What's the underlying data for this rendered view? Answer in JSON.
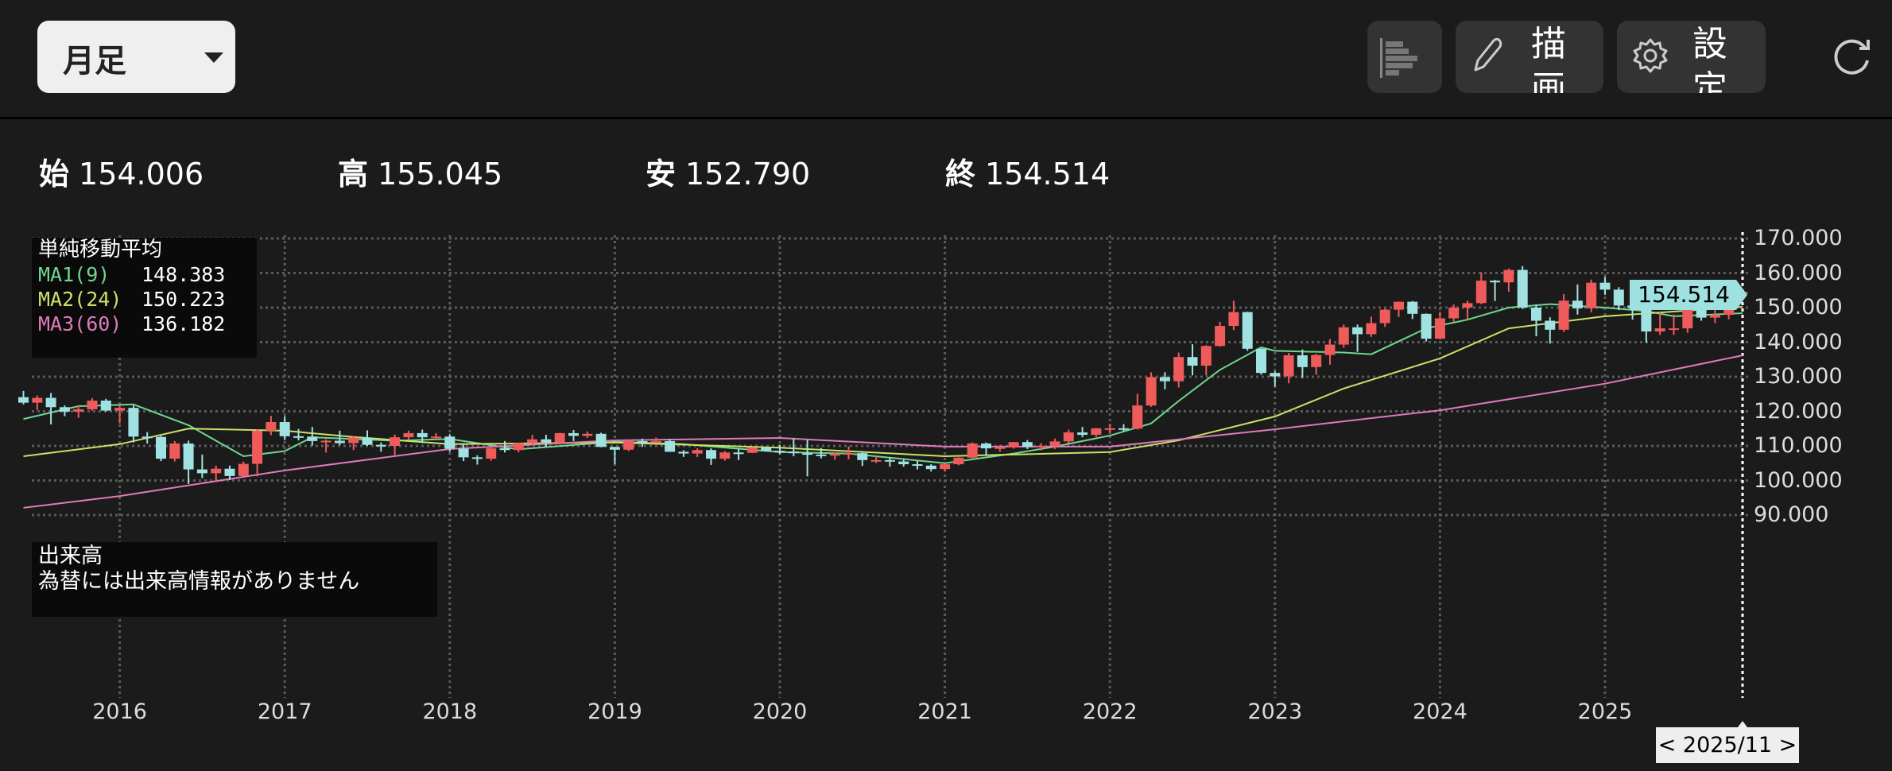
{
  "toolbar": {
    "period_label": "月足",
    "draw_label": "描画",
    "settings_label": "設定",
    "icons": [
      "indicator-list-icon",
      "pencil-icon",
      "gear-icon",
      "refresh-icon",
      "chevron-down-icon"
    ]
  },
  "ohlc": {
    "open_label": "始",
    "open": "154.006",
    "high_label": "高",
    "high": "155.045",
    "low_label": "安",
    "low": "152.790",
    "close_label": "終",
    "close": "154.514"
  },
  "legend": {
    "title": "単純移動平均",
    "items": [
      {
        "name": "MA1(9)",
        "value": "148.383",
        "color": "#6fd68f"
      },
      {
        "name": "MA2(24)",
        "value": "150.223",
        "color": "#c9e168"
      },
      {
        "name": "MA3(60)",
        "value": "136.182",
        "color": "#e07ab8"
      }
    ]
  },
  "volume": {
    "title": "出来高",
    "message": "為替には出来高情報がありません"
  },
  "current_price_tag": "154.514",
  "selected_date": "< 2025/11 >",
  "chart_data": {
    "type": "candlestick",
    "interval": "monthly",
    "start": "2015/06",
    "end": "2025/11",
    "up_color": "#ef5b5b",
    "down_color": "#a0e1e1",
    "ylim": [
      90,
      170
    ],
    "y_ticks": [
      "170.000",
      "160.000",
      "150.000",
      "140.000",
      "130.000",
      "120.000",
      "110.000",
      "100.000",
      "90.000"
    ],
    "x_ticks": [
      "2016",
      "2017",
      "2018",
      "2019",
      "2020",
      "2021",
      "2022",
      "2023",
      "2024",
      "2025"
    ],
    "grid": true,
    "ohlc": [
      [
        124.1,
        125.9,
        122.0,
        122.5
      ],
      [
        122.5,
        124.6,
        120.4,
        123.9
      ],
      [
        123.9,
        125.3,
        116.2,
        121.2
      ],
      [
        121.2,
        121.7,
        118.6,
        119.9
      ],
      [
        119.9,
        121.5,
        118.1,
        120.6
      ],
      [
        120.6,
        123.8,
        120.2,
        123.1
      ],
      [
        123.1,
        123.6,
        119.9,
        120.2
      ],
      [
        120.2,
        121.7,
        116.5,
        121.0
      ],
      [
        121.0,
        121.7,
        111.0,
        112.7
      ],
      [
        112.7,
        114.0,
        110.7,
        112.6
      ],
      [
        112.6,
        112.9,
        105.6,
        106.3
      ],
      [
        106.3,
        111.4,
        105.5,
        110.7
      ],
      [
        110.7,
        111.5,
        99.0,
        103.2
      ],
      [
        103.2,
        107.5,
        100.7,
        102.1
      ],
      [
        102.1,
        104.3,
        99.5,
        103.4
      ],
      [
        103.4,
        104.3,
        100.1,
        101.3
      ],
      [
        101.3,
        105.5,
        101.2,
        104.8
      ],
      [
        104.8,
        114.8,
        101.2,
        114.4
      ],
      [
        114.4,
        118.7,
        113.1,
        116.9
      ],
      [
        116.9,
        118.6,
        111.7,
        112.8
      ],
      [
        112.8,
        114.9,
        111.6,
        112.7
      ],
      [
        112.7,
        115.5,
        110.1,
        111.4
      ],
      [
        111.4,
        111.9,
        108.1,
        111.5
      ],
      [
        111.5,
        114.4,
        110.2,
        110.8
      ],
      [
        110.8,
        112.9,
        108.8,
        112.4
      ],
      [
        112.4,
        114.5,
        110.0,
        110.3
      ],
      [
        110.3,
        111.0,
        108.3,
        110.0
      ],
      [
        110.0,
        113.3,
        107.3,
        112.5
      ],
      [
        112.5,
        114.4,
        111.7,
        113.7
      ],
      [
        113.7,
        114.7,
        110.8,
        112.5
      ],
      [
        112.5,
        113.7,
        111.8,
        112.7
      ],
      [
        112.7,
        113.4,
        108.3,
        109.2
      ],
      [
        109.2,
        110.5,
        105.6,
        106.7
      ],
      [
        106.7,
        107.3,
        104.6,
        106.3
      ],
      [
        106.3,
        109.6,
        105.7,
        109.3
      ],
      [
        109.3,
        111.4,
        108.1,
        108.8
      ],
      [
        108.8,
        110.9,
        108.1,
        110.8
      ],
      [
        110.8,
        113.2,
        110.3,
        111.9
      ],
      [
        111.9,
        113.2,
        109.8,
        111.0
      ],
      [
        111.0,
        113.8,
        110.4,
        113.7
      ],
      [
        113.7,
        114.6,
        111.4,
        112.9
      ],
      [
        112.9,
        114.2,
        112.3,
        113.5
      ],
      [
        113.5,
        113.8,
        109.6,
        109.7
      ],
      [
        109.7,
        109.7,
        104.7,
        108.9
      ],
      [
        108.9,
        111.5,
        108.5,
        111.4
      ],
      [
        111.4,
        112.1,
        109.7,
        110.9
      ],
      [
        110.9,
        112.4,
        110.8,
        111.4
      ],
      [
        111.4,
        112.0,
        108.3,
        108.3
      ],
      [
        108.3,
        108.8,
        106.8,
        107.8
      ],
      [
        107.8,
        109.3,
        106.8,
        108.8
      ],
      [
        108.8,
        109.3,
        104.5,
        106.3
      ],
      [
        106.3,
        108.5,
        105.7,
        108.1
      ],
      [
        108.1,
        109.3,
        105.9,
        108.0
      ],
      [
        108.0,
        109.7,
        107.9,
        109.5
      ],
      [
        109.5,
        109.7,
        108.4,
        108.6
      ],
      [
        108.6,
        110.3,
        107.6,
        108.4
      ],
      [
        108.4,
        112.2,
        107.0,
        107.9
      ],
      [
        107.9,
        111.7,
        101.2,
        107.5
      ],
      [
        107.5,
        109.4,
        106.4,
        107.2
      ],
      [
        107.2,
        108.1,
        106.0,
        107.8
      ],
      [
        107.8,
        109.9,
        106.1,
        107.9
      ],
      [
        107.9,
        108.2,
        104.2,
        105.9
      ],
      [
        105.9,
        107.0,
        105.1,
        105.9
      ],
      [
        105.9,
        106.6,
        104.0,
        105.5
      ],
      [
        105.5,
        106.1,
        104.0,
        104.7
      ],
      [
        104.7,
        105.7,
        103.2,
        104.3
      ],
      [
        104.3,
        104.7,
        102.6,
        103.3
      ],
      [
        103.3,
        104.9,
        102.6,
        104.7
      ],
      [
        104.7,
        106.7,
        104.4,
        106.6
      ],
      [
        106.6,
        111.0,
        106.4,
        110.7
      ],
      [
        110.7,
        111.0,
        107.5,
        109.3
      ],
      [
        109.3,
        110.2,
        108.3,
        109.6
      ],
      [
        109.6,
        111.1,
        109.2,
        111.1
      ],
      [
        111.1,
        111.7,
        109.1,
        109.7
      ],
      [
        109.7,
        110.8,
        108.7,
        110.0
      ],
      [
        110.0,
        112.1,
        109.1,
        111.3
      ],
      [
        111.3,
        114.7,
        110.8,
        113.9
      ],
      [
        113.9,
        115.5,
        112.5,
        113.2
      ],
      [
        113.2,
        115.2,
        112.6,
        115.1
      ],
      [
        115.1,
        116.4,
        113.5,
        115.1
      ],
      [
        115.1,
        116.3,
        114.2,
        115.0
      ],
      [
        115.0,
        125.1,
        114.7,
        121.7
      ],
      [
        121.7,
        131.3,
        121.3,
        129.9
      ],
      [
        129.9,
        131.3,
        126.4,
        128.7
      ],
      [
        128.7,
        137.0,
        126.9,
        135.7
      ],
      [
        135.7,
        139.4,
        130.4,
        133.2
      ],
      [
        133.2,
        139.1,
        130.4,
        138.9
      ],
      [
        138.9,
        145.9,
        138.7,
        144.7
      ],
      [
        144.7,
        152.0,
        143.5,
        148.7
      ],
      [
        148.7,
        148.8,
        137.5,
        138.1
      ],
      [
        138.1,
        138.2,
        130.6,
        131.1
      ],
      [
        131.1,
        131.6,
        127.2,
        130.1
      ],
      [
        130.1,
        136.9,
        128.1,
        136.2
      ],
      [
        136.2,
        137.9,
        129.6,
        132.8
      ],
      [
        132.8,
        136.6,
        130.6,
        136.3
      ],
      [
        136.3,
        140.9,
        133.5,
        139.3
      ],
      [
        139.3,
        145.1,
        138.4,
        144.3
      ],
      [
        144.3,
        145.1,
        137.2,
        142.3
      ],
      [
        142.3,
        147.4,
        141.5,
        145.5
      ],
      [
        145.5,
        149.7,
        144.4,
        149.4
      ],
      [
        149.4,
        151.7,
        147.3,
        151.7
      ],
      [
        151.7,
        151.9,
        146.7,
        148.2
      ],
      [
        148.2,
        148.3,
        140.2,
        141.0
      ],
      [
        141.0,
        148.8,
        140.8,
        146.9
      ],
      [
        146.9,
        150.9,
        145.9,
        150.0
      ],
      [
        150.0,
        152.0,
        146.5,
        151.3
      ],
      [
        151.3,
        160.2,
        151.0,
        157.8
      ],
      [
        157.8,
        158.0,
        151.9,
        157.3
      ],
      [
        157.3,
        161.3,
        154.6,
        160.9
      ],
      [
        160.9,
        162.0,
        149.6,
        150.0
      ],
      [
        150.0,
        150.9,
        141.7,
        146.2
      ],
      [
        146.2,
        147.2,
        139.6,
        143.6
      ],
      [
        143.6,
        153.9,
        143.0,
        152.0
      ],
      [
        152.0,
        156.7,
        148.0,
        149.8
      ],
      [
        149.8,
        158.1,
        148.6,
        157.2
      ],
      [
        157.2,
        158.9,
        153.7,
        155.2
      ],
      [
        155.2,
        155.9,
        149.3,
        150.6
      ],
      [
        150.6,
        151.3,
        146.5,
        149.9
      ],
      [
        149.9,
        150.5,
        139.9,
        143.1
      ],
      [
        143.1,
        148.6,
        142.1,
        144.0
      ],
      [
        144.0,
        148.0,
        142.1,
        144.0
      ],
      [
        144.0,
        150.9,
        142.7,
        150.7
      ],
      [
        150.7,
        150.9,
        146.2,
        147.1
      ],
      [
        147.1,
        149.9,
        145.5,
        147.9
      ],
      [
        147.9,
        154.5,
        146.6,
        154.0
      ],
      [
        154.006,
        155.045,
        152.79,
        154.514
      ]
    ],
    "moving_averages": [
      {
        "name": "MA1(9)",
        "color": "#6fd68f",
        "points": [
          [
            "2015/06",
            117.8
          ],
          [
            "2015/10",
            121.5
          ],
          [
            "2016/02",
            122.0
          ],
          [
            "2016/06",
            116.0
          ],
          [
            "2016/10",
            107.0
          ],
          [
            "2017/01",
            108.5
          ],
          [
            "2017/03",
            112.5
          ],
          [
            "2017/09",
            111.5
          ],
          [
            "2018/01",
            112.0
          ],
          [
            "2018/06",
            109.0
          ],
          [
            "2019/01",
            111.2
          ],
          [
            "2019/06",
            110.5
          ],
          [
            "2020/01",
            108.2
          ],
          [
            "2020/06",
            107.8
          ],
          [
            "2021/01",
            105.0
          ],
          [
            "2021/06",
            107.8
          ],
          [
            "2021/09",
            109.8
          ],
          [
            "2022/01",
            113.0
          ],
          [
            "2022/04",
            116.5
          ],
          [
            "2022/06",
            123.0
          ],
          [
            "2022/09",
            132.0
          ],
          [
            "2022/12",
            138.5
          ],
          [
            "2023/01",
            137.5
          ],
          [
            "2023/06",
            137.0
          ],
          [
            "2023/08",
            136.5
          ],
          [
            "2023/12",
            144.0
          ],
          [
            "2024/03",
            146.5
          ],
          [
            "2024/06",
            150.0
          ],
          [
            "2024/09",
            151.0
          ],
          [
            "2025/01",
            150.0
          ],
          [
            "2025/04",
            149.0
          ],
          [
            "2025/06",
            147.5
          ],
          [
            "2025/11",
            148.383
          ]
        ]
      },
      {
        "name": "MA2(24)",
        "color": "#c9e168",
        "points": [
          [
            "2015/06",
            107.0
          ],
          [
            "2016/01",
            110.5
          ],
          [
            "2016/06",
            115.0
          ],
          [
            "2017/01",
            114.4
          ],
          [
            "2017/06",
            112.6
          ],
          [
            "2018/01",
            110.5
          ],
          [
            "2019/01",
            111.0
          ],
          [
            "2020/01",
            109.5
          ],
          [
            "2021/01",
            107.0
          ],
          [
            "2022/01",
            108.2
          ],
          [
            "2022/06",
            111.6
          ],
          [
            "2023/01",
            118.5
          ],
          [
            "2023/06",
            126.6
          ],
          [
            "2024/01",
            135.3
          ],
          [
            "2024/06",
            144.0
          ],
          [
            "2025/01",
            147.5
          ],
          [
            "2025/11",
            150.223
          ]
        ]
      },
      {
        "name": "MA3(60)",
        "color": "#e07ab8",
        "points": [
          [
            "2015/06",
            92.1
          ],
          [
            "2016/01",
            95.5
          ],
          [
            "2017/01",
            102.9
          ],
          [
            "2018/01",
            109.1
          ],
          [
            "2019/01",
            111.6
          ],
          [
            "2020/01",
            112.3
          ],
          [
            "2021/01",
            109.8
          ],
          [
            "2022/01",
            109.8
          ],
          [
            "2023/01",
            114.8
          ],
          [
            "2024/01",
            120.3
          ],
          [
            "2025/01",
            128.0
          ],
          [
            "2025/11",
            136.182
          ]
        ]
      }
    ]
  }
}
